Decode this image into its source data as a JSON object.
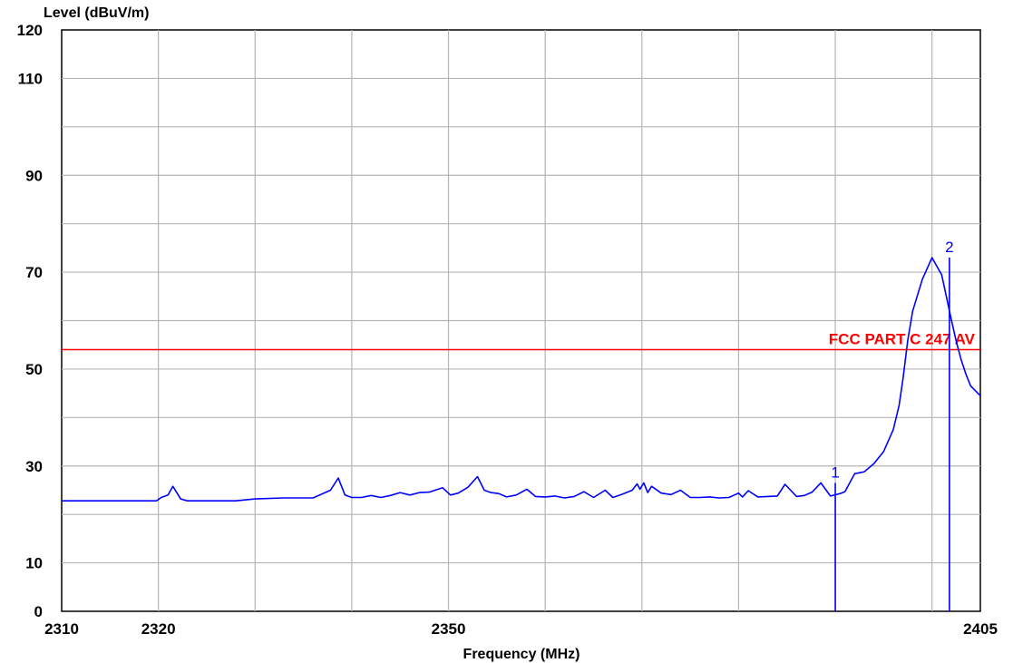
{
  "chart_data": {
    "type": "line",
    "title": "",
    "ylabel": "Level (dBuV/m)",
    "xlabel": "Frequency (MHz)",
    "xlim": [
      2310,
      2405
    ],
    "ylim": [
      0,
      120
    ],
    "x_tick_labels": [
      {
        "value": 2310,
        "label": "2310"
      },
      {
        "value": 2320,
        "label": "2320"
      },
      {
        "value": 2350,
        "label": "2350"
      },
      {
        "value": 2405,
        "label": "2405"
      }
    ],
    "x_grid": [
      2320,
      2330,
      2340,
      2350,
      2360,
      2370,
      2380,
      2390,
      2400
    ],
    "y_tick_labels": [
      0,
      10,
      30,
      50,
      70,
      90,
      110,
      120
    ],
    "y_grid": [
      10,
      20,
      30,
      40,
      50,
      60,
      70,
      80,
      90,
      100,
      110
    ],
    "grid": true,
    "limit_line": {
      "name": "FCC PART C 247 AV",
      "value": 54,
      "color": "#ff0000"
    },
    "trace_color": "#0000ff",
    "series": [
      {
        "x": [
          2310,
          2312,
          2314,
          2316,
          2318,
          2319.8,
          2320.3,
          2321,
          2321.5,
          2322.3,
          2323,
          2325,
          2328,
          2330,
          2333,
          2336,
          2337.8,
          2338.6,
          2339.3,
          2340,
          2341,
          2342,
          2343,
          2344,
          2345,
          2346,
          2347,
          2348,
          2349.4,
          2350.2,
          2351,
          2352,
          2353,
          2353.7,
          2354.4,
          2355.2,
          2356,
          2357,
          2358.1,
          2359,
          2360,
          2361,
          2362,
          2363,
          2364,
          2365,
          2366.2,
          2367,
          2368,
          2369,
          2369.5,
          2369.8,
          2370.2,
          2370.6,
          2371,
          2372,
          2373,
          2374,
          2375,
          2376,
          2377,
          2378,
          2379,
          2380,
          2380.4,
          2381,
          2382,
          2383,
          2384,
          2384.8,
          2386,
          2386.8,
          2387.6,
          2388.5,
          2389.5,
          2390.5,
          2391,
          2392,
          2393,
          2394,
          2395,
          2396,
          2396.6,
          2397,
          2397.5,
          2398,
          2399,
          2400,
          2401,
          2402,
          2402.5,
          2403,
          2403.5,
          2404,
          2405
        ],
        "y": [
          22.8,
          22.8,
          22.8,
          22.8,
          22.8,
          22.8,
          23.5,
          24,
          25.8,
          23.2,
          22.8,
          22.8,
          22.8,
          23.2,
          23.4,
          23.4,
          25,
          27.5,
          24,
          23.5,
          23.5,
          23.9,
          23.5,
          23.9,
          24.5,
          24,
          24.5,
          24.6,
          25.5,
          24,
          24.4,
          25.6,
          27.8,
          25,
          24.5,
          24.3,
          23.6,
          24,
          25.2,
          23.7,
          23.6,
          23.8,
          23.4,
          23.7,
          24.7,
          23.5,
          25,
          23.5,
          24.2,
          25,
          26.3,
          25.2,
          26.5,
          24.5,
          25.8,
          24.4,
          24.1,
          25,
          23.5,
          23.5,
          23.6,
          23.4,
          23.5,
          24.4,
          23.6,
          24.9,
          23.6,
          23.7,
          23.8,
          26.2,
          23.7,
          23.9,
          24.6,
          26.5,
          23.8,
          24.3,
          24.7,
          28.4,
          28.8,
          30.5,
          33,
          37.5,
          42.5,
          48,
          56,
          62,
          68.5,
          73,
          69.5,
          60.2,
          55.8,
          52,
          49,
          46.5,
          44.5
        ]
      }
    ],
    "markers": [
      {
        "label": "1",
        "x": 2390,
        "y": 26.5
      },
      {
        "label": "2",
        "x": 2401.8,
        "y": 73
      }
    ]
  }
}
